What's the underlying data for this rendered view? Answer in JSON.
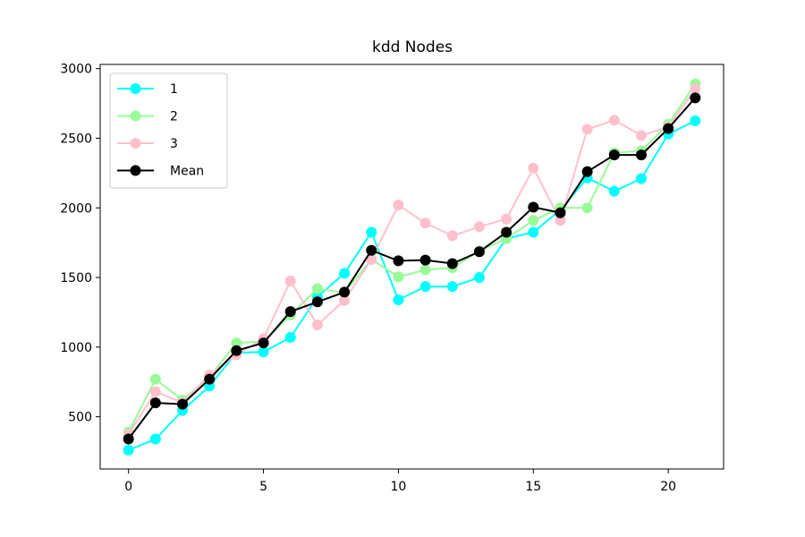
{
  "chart_data": {
    "type": "line",
    "title": "kdd Nodes",
    "xlabel": "",
    "ylabel": "",
    "xlim": [
      -1.05,
      22.05
    ],
    "ylim": [
      125,
      3030
    ],
    "x_ticks": [
      0,
      5,
      10,
      15,
      20
    ],
    "y_ticks": [
      500,
      1000,
      1500,
      2000,
      2500,
      3000
    ],
    "legend_position": "top-left",
    "grid": false,
    "x": [
      0,
      1,
      2,
      3,
      4,
      5,
      6,
      7,
      8,
      9,
      10,
      11,
      12,
      13,
      14,
      15,
      16,
      17,
      18,
      19,
      20,
      21
    ],
    "series": [
      {
        "name": "1",
        "color": "#00ffff",
        "values": [
          260,
          340,
          545,
          720,
          960,
          965,
          1070,
          1360,
          1530,
          1825,
          1340,
          1435,
          1435,
          1500,
          1780,
          1825,
          1985,
          2215,
          2120,
          2210,
          2530,
          2625
        ]
      },
      {
        "name": "2",
        "color": "#98fb98",
        "values": [
          390,
          770,
          620,
          785,
          1030,
          1040,
          1230,
          1420,
          1390,
          1630,
          1505,
          1555,
          1570,
          1690,
          1780,
          1910,
          2000,
          2000,
          2395,
          2410,
          2600,
          2890
        ]
      },
      {
        "name": "3",
        "color": "#ffc0cb",
        "values": [
          375,
          680,
          600,
          800,
          945,
          1060,
          1475,
          1160,
          1335,
          1630,
          2020,
          1890,
          1800,
          1865,
          1920,
          2285,
          1910,
          2565,
          2630,
          2520,
          2580,
          2855
        ]
      },
      {
        "name": "Mean",
        "color": "#000000",
        "values": [
          340,
          600,
          590,
          770,
          975,
          1030,
          1255,
          1325,
          1395,
          1695,
          1620,
          1625,
          1600,
          1685,
          1825,
          2005,
          1965,
          2260,
          2380,
          2380,
          2570,
          2790
        ]
      }
    ]
  }
}
